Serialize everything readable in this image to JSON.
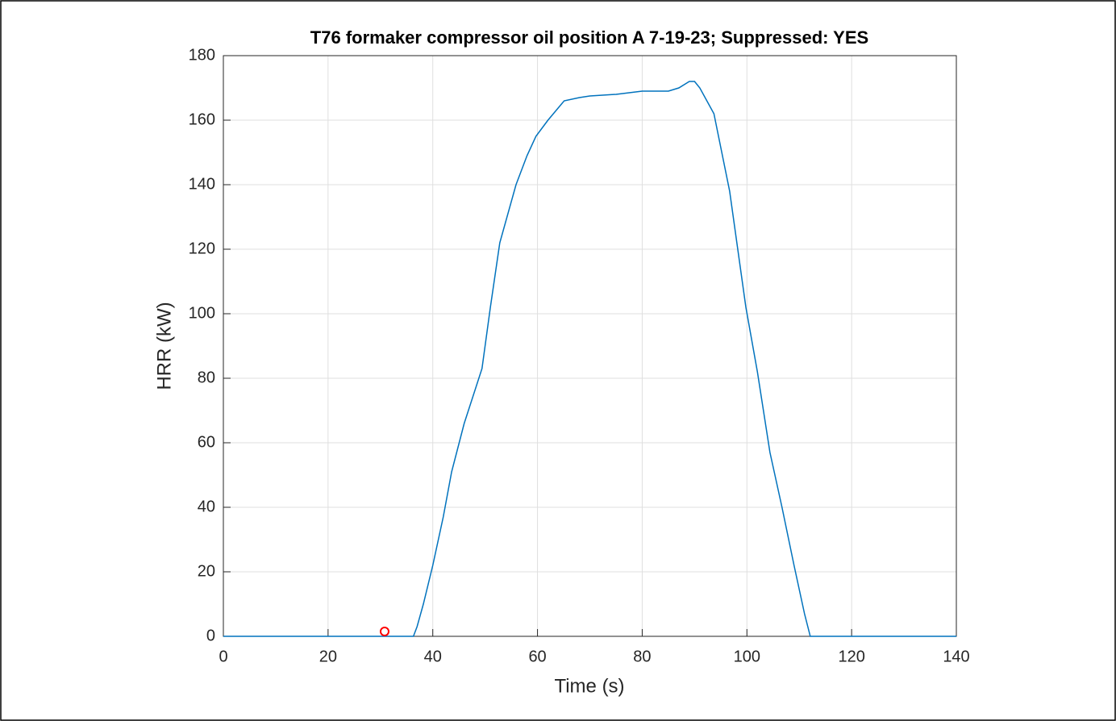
{
  "chart_data": {
    "type": "line",
    "title": "T76 formaker compressor oil position A 7-19-23; Suppressed: YES",
    "x_label": "Time (s)",
    "y_label": "HRR (kW)",
    "x": [
      0,
      36.3,
      37,
      38.2,
      40,
      42,
      43.6,
      46,
      49.4,
      51,
      52.8,
      55.9,
      58,
      59.7,
      62,
      65.1,
      68,
      70,
      75,
      80,
      85,
      87,
      89,
      90,
      91,
      93.7,
      96.7,
      99.8,
      102,
      104.4,
      106.7,
      109,
      111,
      112.1,
      140
    ],
    "series": [
      {
        "color": "#0072bd",
        "values": [
          0,
          0,
          3,
          10,
          22,
          37,
          51,
          66,
          83,
          102,
          122,
          140,
          149,
          155,
          160,
          166,
          167,
          167.5,
          168,
          169,
          169,
          170,
          172,
          172,
          170,
          162,
          138,
          102,
          82,
          57,
          40,
          22,
          7,
          0,
          0
        ]
      }
    ],
    "marker": {
      "x": 30.8,
      "y": 1.5,
      "color": "#ff0000"
    },
    "xlim": [
      0,
      140
    ],
    "ylim": [
      0,
      180
    ],
    "xticks": [
      0,
      20,
      40,
      60,
      80,
      100,
      120,
      140
    ],
    "yticks": [
      0,
      20,
      40,
      60,
      80,
      100,
      120,
      140,
      160,
      180
    ],
    "grid": true
  }
}
